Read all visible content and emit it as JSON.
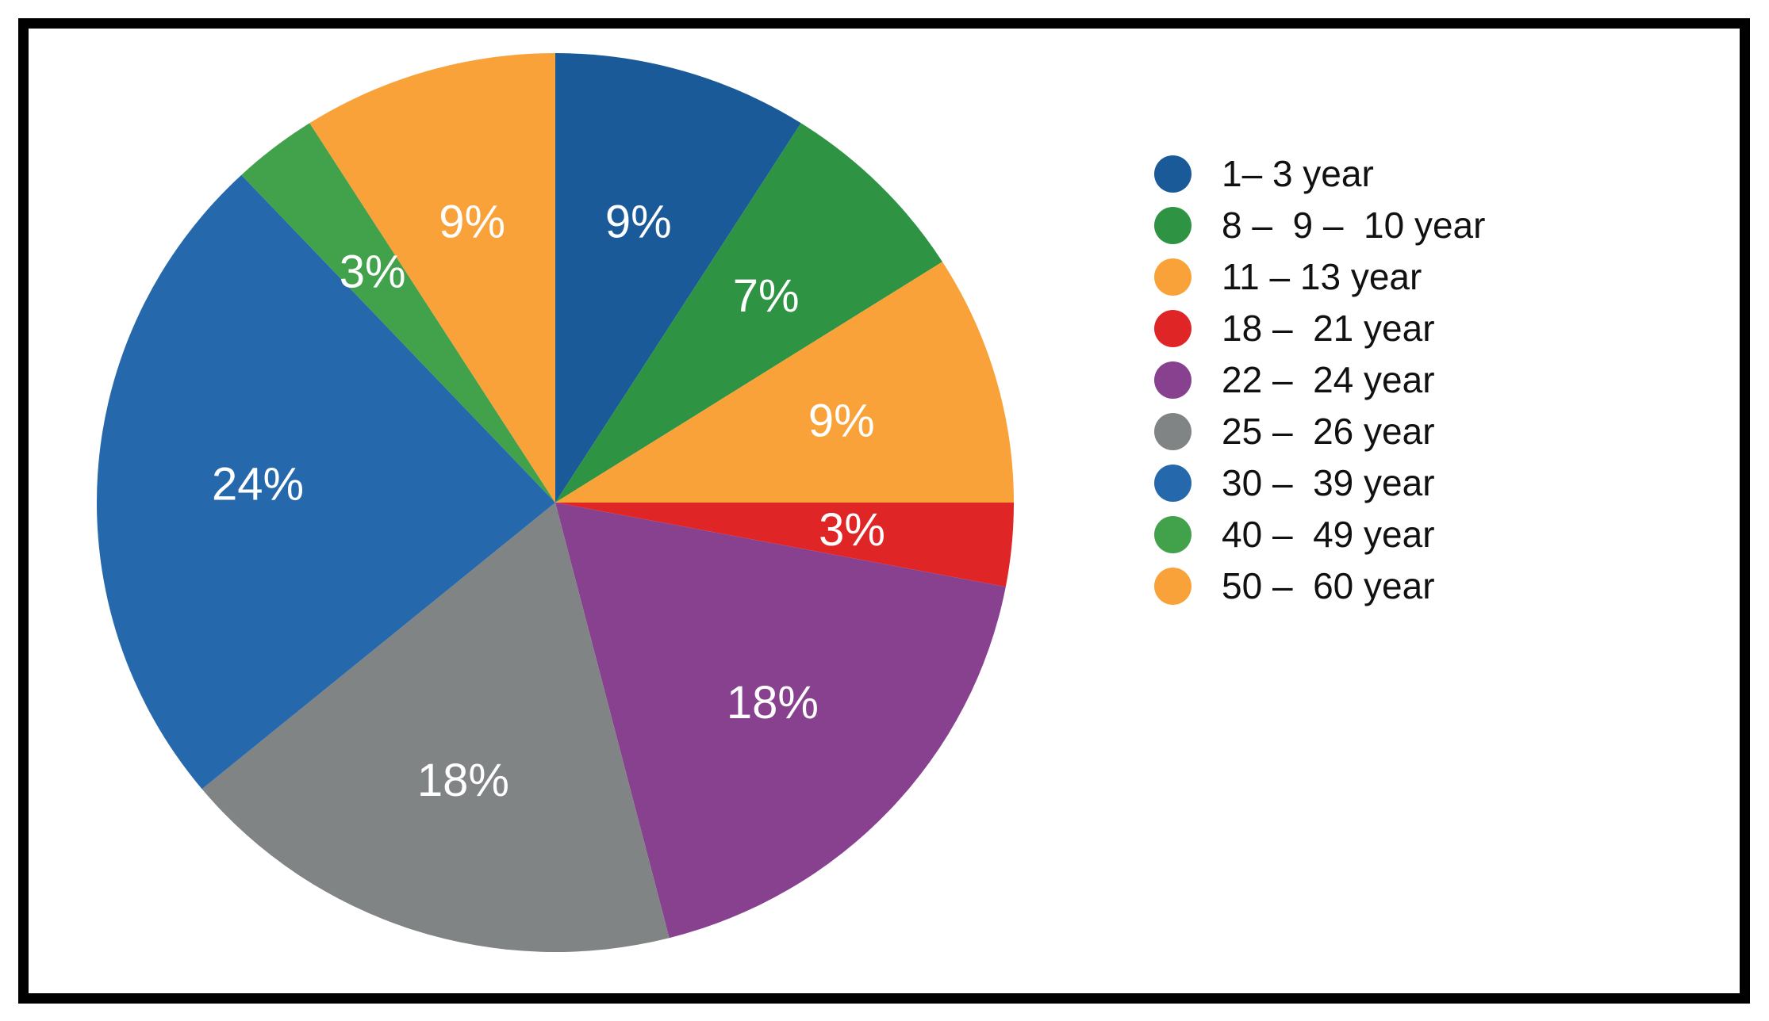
{
  "chart_data": {
    "type": "pie",
    "title": "",
    "legend_position": "right",
    "direction": "clockwise",
    "start_angle_deg": 0,
    "categories": [
      "1– 3 year",
      "8 –  9 –  10 year",
      "11 – 13 year",
      "18 –  21 year",
      "22 –  24 year",
      "25 –  26 year",
      "30 –  39 year",
      "40 –  49 year",
      "50 –  60 year"
    ],
    "values": [
      9,
      7,
      9,
      3,
      18,
      18,
      24,
      3,
      9
    ],
    "slice_labels": [
      "9%",
      "7%",
      "9%",
      "3%",
      "18%",
      "18%",
      "24%",
      "3%",
      "9%"
    ],
    "colors": [
      "#1b5a99",
      "#2e9342",
      "#f9a23a",
      "#e02527",
      "#87418f",
      "#818485",
      "#2569ac",
      "#42a14b",
      "#f9a23a"
    ],
    "slice_label_color": "#ffffff",
    "legend_text_color": "#111111",
    "frame_color": "#000000",
    "background_color": "#ffffff"
  }
}
